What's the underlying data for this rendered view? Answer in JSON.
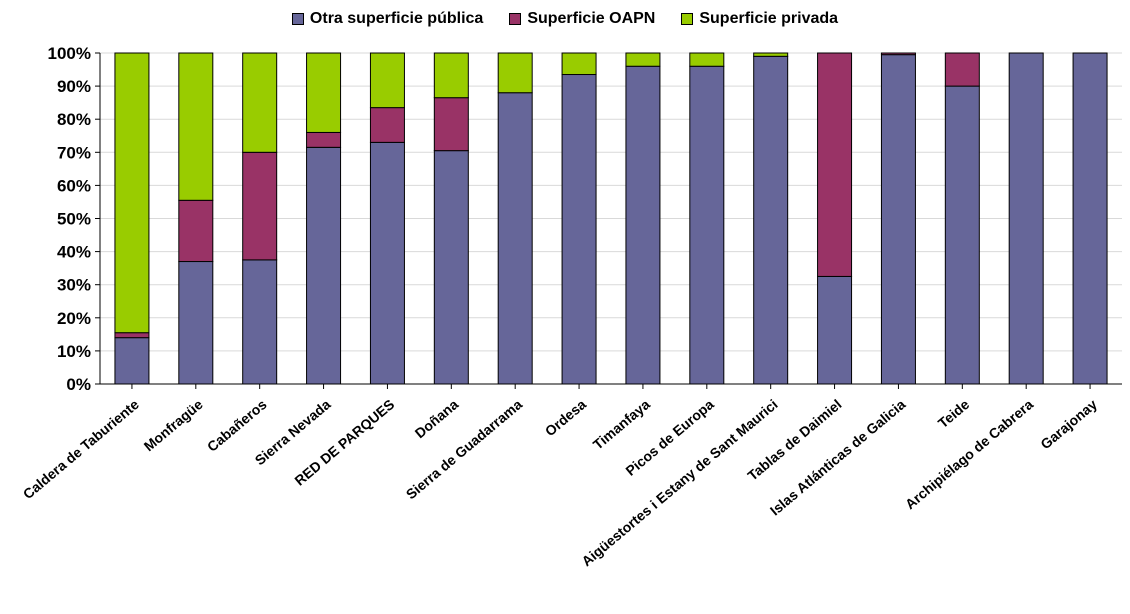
{
  "chart_data": {
    "type": "bar",
    "stacked": true,
    "percent": true,
    "categories": [
      "Caldera de Taburiente",
      "Monfragüe",
      "Cabañeros",
      "Sierra Nevada",
      "RED DE PARQUES",
      "Doñana",
      "Sierra de Guadarrama",
      "Ordesa",
      "Timanfaya",
      "Picos de Europa",
      "Aigüestortes i Estany de  Sant Maurici",
      "Tablas de Daimiel",
      "Islas Atlánticas de Galicia",
      "Teide",
      "Archipiélago de Cabrera",
      "Garajonay"
    ],
    "series": [
      {
        "name": "Otra superficie pública",
        "color": "#666699",
        "values": [
          14,
          37,
          37.5,
          71.5,
          73,
          70.5,
          88,
          93.5,
          96,
          96,
          99,
          32.5,
          99.5,
          90,
          100,
          100
        ]
      },
      {
        "name": "Superficie OAPN",
        "color": "#993366",
        "values": [
          1.5,
          18.5,
          32.5,
          4.5,
          10.5,
          16,
          0,
          0,
          0,
          0,
          0,
          67.5,
          0.5,
          10,
          0,
          0
        ]
      },
      {
        "name": "Superficie privada",
        "color": "#99CC00",
        "values": [
          84.5,
          44.5,
          30,
          24,
          16.5,
          13.5,
          12,
          6.5,
          4,
          4,
          1,
          0,
          0,
          0,
          0,
          0
        ]
      }
    ],
    "yticks": [
      "0%",
      "10%",
      "20%",
      "30%",
      "40%",
      "50%",
      "60%",
      "70%",
      "80%",
      "90%",
      "100%"
    ],
    "ylim": [
      0,
      100
    ],
    "grid": true,
    "legend_position": "top"
  }
}
